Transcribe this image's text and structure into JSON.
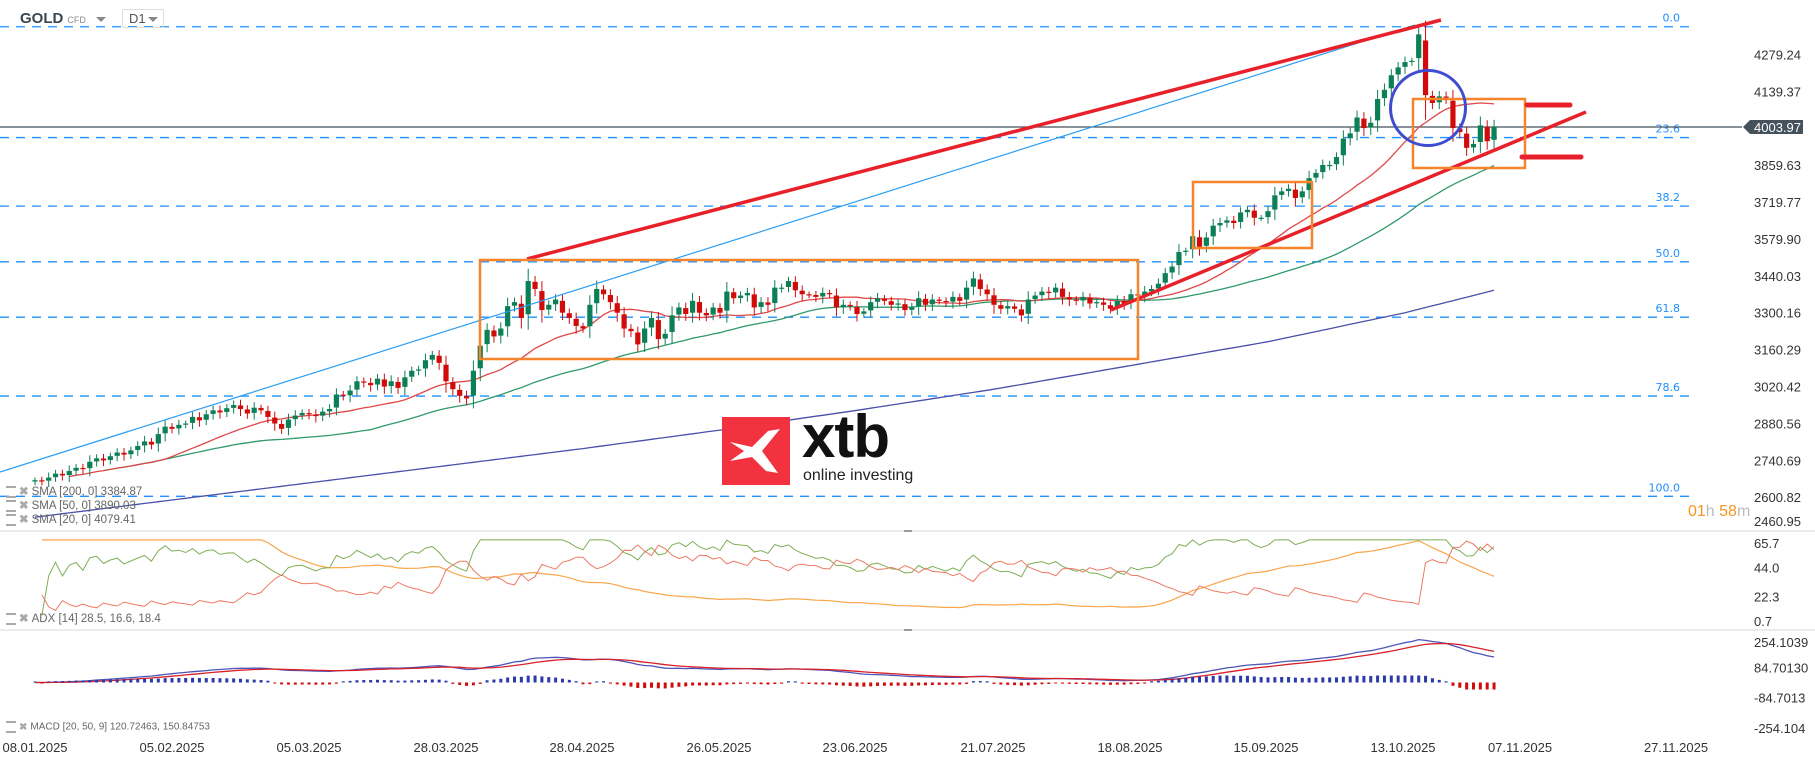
{
  "header": {
    "symbol": "GOLD",
    "symbol_type": "CFD",
    "timeframe": "D1"
  },
  "legends": {
    "sma200": "SMA [200, 0] 3384.87",
    "sma50": "SMA [50, 0] 3890.03",
    "sma20": "SMA [20, 0] 4079.41",
    "adx": "ADX [14] 28.5, 16.6, 18.4",
    "macd": "MACD [20, 50, 9] 120.72463, 150.84753"
  },
  "timer": {
    "hours": "01",
    "h": "h",
    "minutes": "58",
    "m": "m"
  },
  "logo": {
    "name": "xtb",
    "tagline": "online investing"
  },
  "colors": {
    "up": "#0b7f55",
    "down": "#d10a0a",
    "sma20": "#e04848",
    "sma50": "#2f9a6b",
    "sma200": "#4a50a8",
    "fib": "#1e90ff",
    "trend": "#e8202a",
    "box": "#f7842b",
    "circle": "#3f4ccf",
    "price_line": "#45525c"
  },
  "chart_data": {
    "type": "candlestick",
    "instrument": "GOLD",
    "timeframe": "D1",
    "close": [
      2665,
      2662,
      2675,
      2690,
      2683,
      2700,
      2712,
      2708,
      2735,
      2748,
      2740,
      2756,
      2770,
      2762,
      2778,
      2795,
      2812,
      2800,
      2840,
      2868,
      2860,
      2875,
      2880,
      2905,
      2892,
      2915,
      2930,
      2922,
      2938,
      2950,
      2935,
      2918,
      2940,
      2930,
      2905,
      2880,
      2860,
      2895,
      2910,
      2920,
      2915,
      2908,
      2925,
      2935,
      2990,
      2985,
      3005,
      3040,
      3035,
      3025,
      3050,
      3020,
      3040,
      3015,
      3055,
      3080,
      3085,
      3120,
      3140,
      3110,
      3040,
      3010,
      2985,
      2975,
      3080,
      3175,
      3235,
      3210,
      3240,
      3325,
      3340,
      3280,
      3420,
      3390,
      3310,
      3330,
      3350,
      3300,
      3280,
      3250,
      3240,
      3330,
      3390,
      3370,
      3340,
      3300,
      3240,
      3230,
      3180,
      3240,
      3280,
      3200,
      3220,
      3290,
      3320,
      3295,
      3345,
      3300,
      3290,
      3320,
      3300,
      3380,
      3355,
      3365,
      3375,
      3320,
      3340,
      3330,
      3395,
      3395,
      3420,
      3385,
      3370,
      3368,
      3360,
      3375,
      3370,
      3320,
      3330,
      3325,
      3295,
      3305,
      3340,
      3355,
      3345,
      3330,
      3335,
      3310,
      3320,
      3355,
      3330,
      3350,
      3345,
      3340,
      3360,
      3345,
      3395,
      3430,
      3390,
      3370,
      3330,
      3315,
      3325,
      3315,
      3290,
      3350,
      3365,
      3380,
      3375,
      3395,
      3360,
      3350,
      3345,
      3360,
      3335,
      3340,
      3330,
      3315,
      3345,
      3335,
      3370,
      3365,
      3380,
      3390,
      3410,
      3450,
      3475,
      3530,
      3535,
      3590,
      3550,
      3585,
      3630,
      3640,
      3650,
      3640,
      3680,
      3690,
      3660,
      3660,
      3685,
      3745,
      3760,
      3770,
      3735,
      3760,
      3810,
      3830,
      3860,
      3860,
      3890,
      3960,
      3980,
      4040,
      4000,
      4020,
      4110,
      4145,
      4200,
      4230,
      4250,
      4255,
      4355,
      4125,
      4095,
      4120,
      4115,
      4000,
      3985,
      3925,
      3940,
      4010,
      3950,
      4003.97
    ],
    "current_price": 4003.97,
    "sma200": [
      2525,
      2590,
      2655,
      2720,
      2785,
      2855,
      2930,
      3010,
      3100,
      3190,
      3300,
      3384.87
    ],
    "y_ticks": [
      "4279.24",
      "4139.37",
      "4003.97",
      "3859.63",
      "3719.77",
      "3579.90",
      "3440.03",
      "3300.16",
      "3160.29",
      "3020.42",
      "2880.56",
      "2740.69",
      "2600.82",
      "2460.95"
    ],
    "fibonacci": [
      {
        "level": "0.0",
        "price": 4384
      },
      {
        "level": "23.6",
        "price": 3964
      },
      {
        "level": "38.2",
        "price": 3704
      },
      {
        "level": "50.0",
        "price": 3493
      },
      {
        "level": "61.8",
        "price": 3283
      },
      {
        "level": "78.6",
        "price": 2984
      },
      {
        "level": "100.0",
        "price": 2604
      }
    ],
    "x_ticks": [
      "08.01.2025",
      "05.02.2025",
      "05.03.2025",
      "28.03.2025",
      "28.04.2025",
      "26.05.2025",
      "23.06.2025",
      "21.07.2025",
      "18.08.2025",
      "15.09.2025",
      "13.10.2025",
      "07.11.2025",
      "27.11.2025"
    ],
    "adx_ticks": [
      "65.7",
      "44.0",
      "22.3",
      "0.7"
    ],
    "macd_ticks": [
      "254.1039",
      "84.70130",
      "-84.7013",
      "-254.104"
    ],
    "adx_range": [
      0.7,
      65.7
    ],
    "macd_range": [
      -254.104,
      254.1039
    ]
  }
}
